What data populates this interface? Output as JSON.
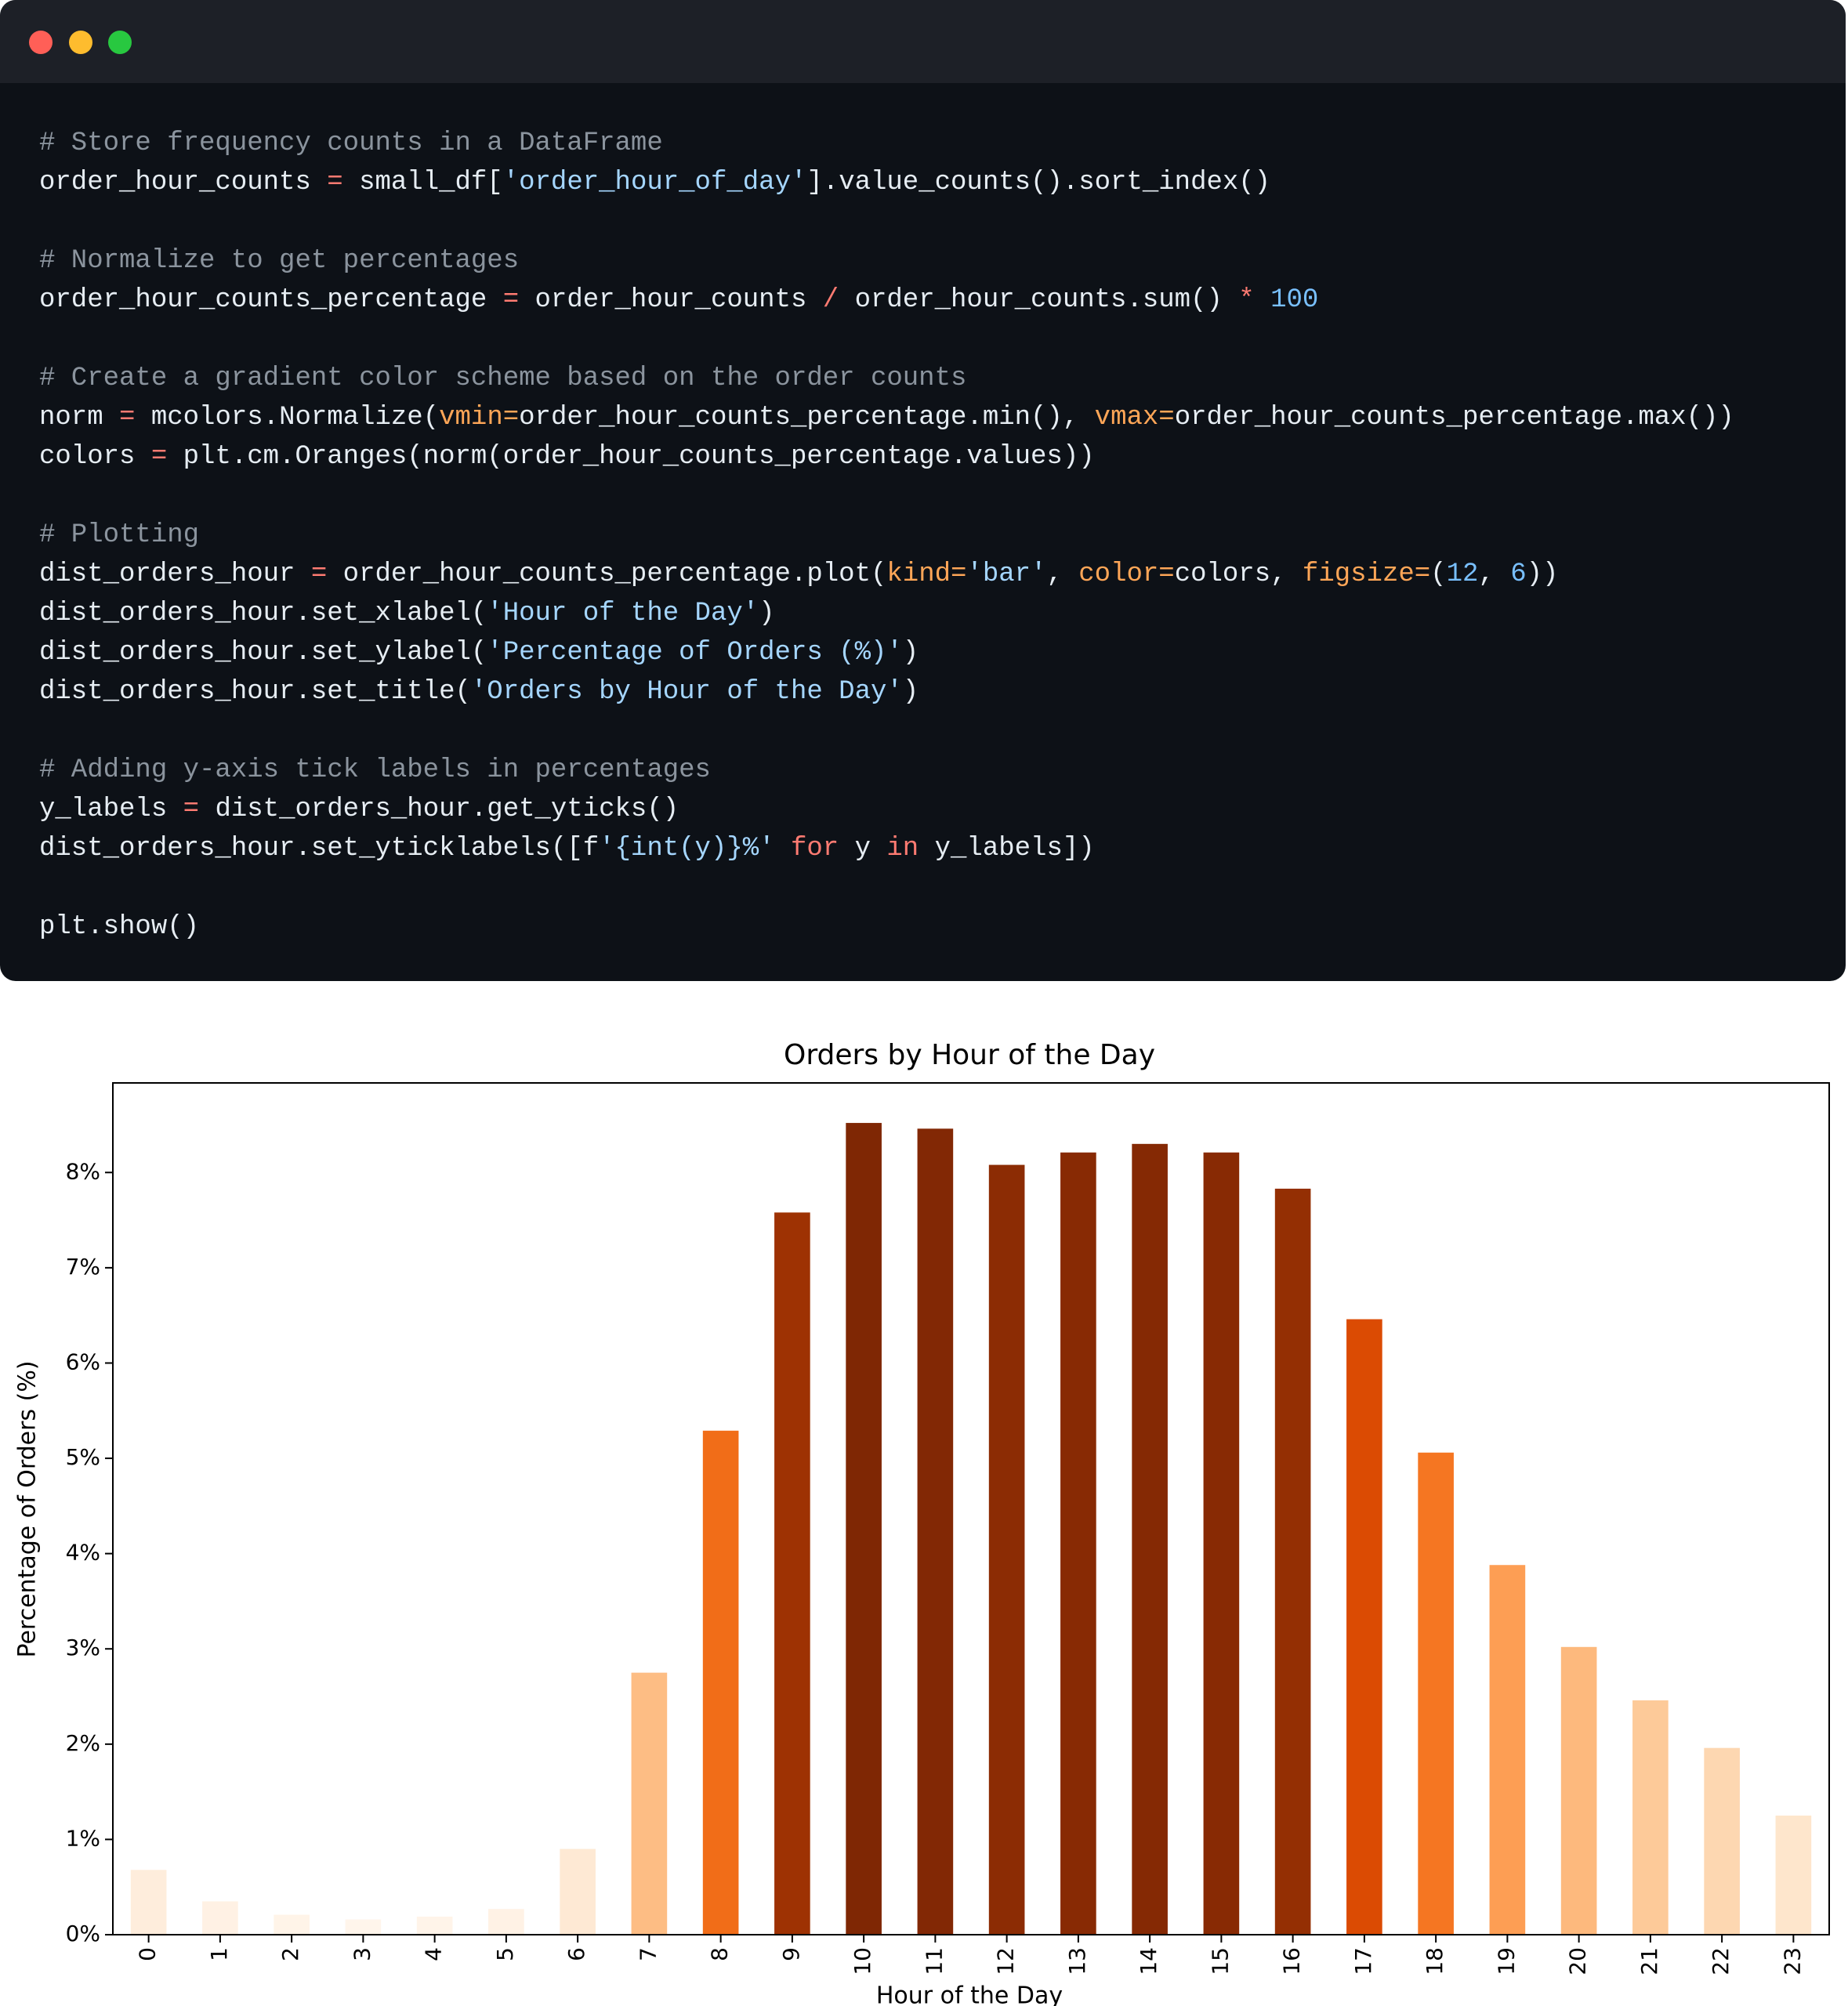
{
  "code": {
    "lines": [
      [
        {
          "text": "# Store frequency counts in a DataFrame",
          "color": "#8b949e"
        }
      ],
      [
        {
          "text": "order_hour_counts ",
          "color": "#e6edf3"
        },
        {
          "text": "=",
          "color": "#ff7b72"
        },
        {
          "text": " small_df[",
          "color": "#e6edf3"
        },
        {
          "text": "'order_hour_of_day'",
          "color": "#a5d6ff"
        },
        {
          "text": "].value_counts().sort_index()",
          "color": "#e6edf3"
        }
      ],
      [],
      [
        {
          "text": "# Normalize to get percentages",
          "color": "#8b949e"
        }
      ],
      [
        {
          "text": "order_hour_counts_percentage ",
          "color": "#e6edf3"
        },
        {
          "text": "=",
          "color": "#ff7b72"
        },
        {
          "text": " order_hour_counts ",
          "color": "#e6edf3"
        },
        {
          "text": "/",
          "color": "#ff7b72"
        },
        {
          "text": " order_hour_counts.sum() ",
          "color": "#e6edf3"
        },
        {
          "text": "*",
          "color": "#ff7b72"
        },
        {
          "text": " 100",
          "color": "#79c0ff"
        }
      ],
      [],
      [
        {
          "text": "# Create a gradient color scheme based on the order counts",
          "color": "#8b949e"
        }
      ],
      [
        {
          "text": "norm ",
          "color": "#e6edf3"
        },
        {
          "text": "=",
          "color": "#ff7b72"
        },
        {
          "text": " mcolors.Normalize(",
          "color": "#e6edf3"
        },
        {
          "text": "vmin=",
          "color": "#ffa657"
        },
        {
          "text": "order_hour_counts_percentage.min(), ",
          "color": "#e6edf3"
        },
        {
          "text": "vmax=",
          "color": "#ffa657"
        },
        {
          "text": "order_hour_counts_percentage.max())",
          "color": "#e6edf3"
        }
      ],
      [
        {
          "text": "colors ",
          "color": "#e6edf3"
        },
        {
          "text": "=",
          "color": "#ff7b72"
        },
        {
          "text": " plt.cm.Oranges(norm(order_hour_counts_percentage.values))",
          "color": "#e6edf3"
        }
      ],
      [],
      [
        {
          "text": "# Plotting",
          "color": "#8b949e"
        }
      ],
      [
        {
          "text": "dist_orders_hour ",
          "color": "#e6edf3"
        },
        {
          "text": "=",
          "color": "#ff7b72"
        },
        {
          "text": " order_hour_counts_percentage.plot(",
          "color": "#e6edf3"
        },
        {
          "text": "kind=",
          "color": "#ffa657"
        },
        {
          "text": "'bar'",
          "color": "#a5d6ff"
        },
        {
          "text": ", ",
          "color": "#e6edf3"
        },
        {
          "text": "color=",
          "color": "#ffa657"
        },
        {
          "text": "colors, ",
          "color": "#e6edf3"
        },
        {
          "text": "figsize=",
          "color": "#ffa657"
        },
        {
          "text": "(",
          "color": "#e6edf3"
        },
        {
          "text": "12",
          "color": "#79c0ff"
        },
        {
          "text": ", ",
          "color": "#e6edf3"
        },
        {
          "text": "6",
          "color": "#79c0ff"
        },
        {
          "text": "))",
          "color": "#e6edf3"
        }
      ],
      [
        {
          "text": "dist_orders_hour.set_xlabel(",
          "color": "#e6edf3"
        },
        {
          "text": "'Hour of the Day'",
          "color": "#a5d6ff"
        },
        {
          "text": ")",
          "color": "#e6edf3"
        }
      ],
      [
        {
          "text": "dist_orders_hour.set_ylabel(",
          "color": "#e6edf3"
        },
        {
          "text": "'Percentage of Orders (%)'",
          "color": "#a5d6ff"
        },
        {
          "text": ")",
          "color": "#e6edf3"
        }
      ],
      [
        {
          "text": "dist_orders_hour.set_title(",
          "color": "#e6edf3"
        },
        {
          "text": "'Orders by Hour of the Day'",
          "color": "#a5d6ff"
        },
        {
          "text": ")",
          "color": "#e6edf3"
        }
      ],
      [],
      [
        {
          "text": "# Adding y-axis tick labels in percentages",
          "color": "#8b949e"
        }
      ],
      [
        {
          "text": "y_labels ",
          "color": "#e6edf3"
        },
        {
          "text": "=",
          "color": "#ff7b72"
        },
        {
          "text": " dist_orders_hour.get_yticks()",
          "color": "#e6edf3"
        }
      ],
      [
        {
          "text": "dist_orders_hour.set_yticklabels([f",
          "color": "#e6edf3"
        },
        {
          "text": "'{int(y)}%'",
          "color": "#a5d6ff"
        },
        {
          "text": " ",
          "color": "#e6edf3"
        },
        {
          "text": "for",
          "color": "#ff7b72"
        },
        {
          "text": " y ",
          "color": "#e6edf3"
        },
        {
          "text": "in",
          "color": "#ff7b72"
        },
        {
          "text": " y_labels])",
          "color": "#e6edf3"
        }
      ],
      [],
      [
        {
          "text": "plt.show()",
          "color": "#e6edf3"
        }
      ]
    ]
  },
  "chart_data": {
    "type": "bar",
    "title": "Orders by Hour of the Day",
    "x_label": "Hour of the Day",
    "y_label": "Percentage of Orders (%)",
    "categories": [
      "0",
      "1",
      "2",
      "3",
      "4",
      "5",
      "6",
      "7",
      "8",
      "9",
      "10",
      "11",
      "12",
      "13",
      "14",
      "15",
      "16",
      "17",
      "18",
      "19",
      "20",
      "21",
      "22",
      "23"
    ],
    "values": [
      0.68,
      0.35,
      0.21,
      0.16,
      0.19,
      0.27,
      0.9,
      2.75,
      5.29,
      7.58,
      8.52,
      8.46,
      8.08,
      8.21,
      8.3,
      8.21,
      7.83,
      6.46,
      5.06,
      3.88,
      3.02,
      2.46,
      1.96,
      1.25
    ],
    "colors": [
      "#feeddc",
      "#fff1e4",
      "#fff4e8",
      "#fff5eb",
      "#fff4e9",
      "#fff2e5",
      "#fee9d4",
      "#fdbd84",
      "#f16d18",
      "#9e3203",
      "#7f2704",
      "#822805",
      "#8c2c04",
      "#882a04",
      "#852904",
      "#882a04",
      "#942f03",
      "#db4b03",
      "#f57622",
      "#fd9e54",
      "#fdb97d",
      "#fdca99",
      "#fdd7b1",
      "#fee6cc"
    ],
    "ylim": [
      0,
      8.94
    ],
    "yticks": [
      {
        "value": 0,
        "label": "0%"
      },
      {
        "value": 1,
        "label": "1%"
      },
      {
        "value": 2,
        "label": "2%"
      },
      {
        "value": 3,
        "label": "3%"
      },
      {
        "value": 4,
        "label": "4%"
      },
      {
        "value": 5,
        "label": "5%"
      },
      {
        "value": 6,
        "label": "6%"
      },
      {
        "value": 7,
        "label": "7%"
      },
      {
        "value": 8,
        "label": "8%"
      }
    ],
    "grid": false
  }
}
